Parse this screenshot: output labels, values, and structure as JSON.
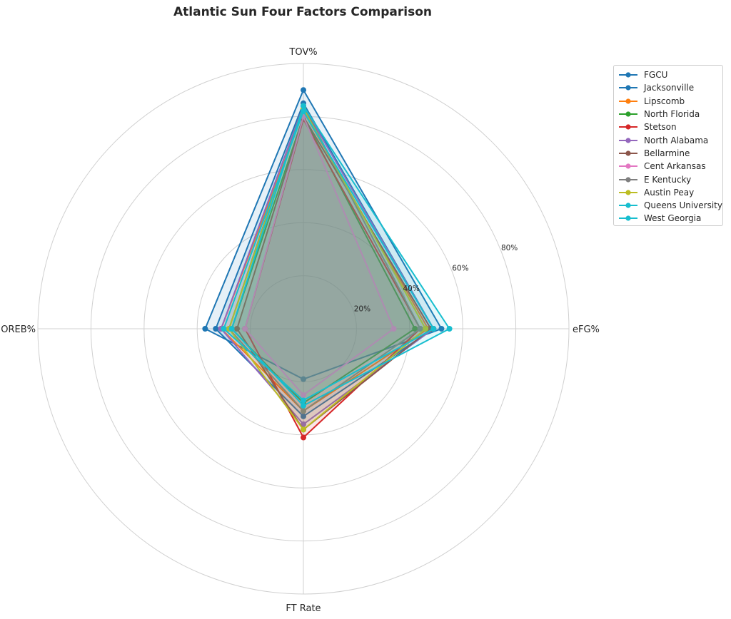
{
  "chart_data": {
    "type": "radar",
    "title": "Atlantic Sun Four Factors Comparison",
    "axes": [
      "eFG%",
      "TOV%",
      "OREB%",
      "FT Rate"
    ],
    "rlim": [
      0,
      100
    ],
    "rticks": [
      20,
      40,
      60,
      80
    ],
    "rtick_labels": [
      "20%",
      "40%",
      "60%",
      "80%"
    ],
    "grid": true,
    "legend": "top-right",
    "series": [
      {
        "name": "FGCU",
        "color": "#1f77b4",
        "values": [
          52,
          90,
          37,
          19
        ]
      },
      {
        "name": "Jacksonville",
        "color": "#1f77b4",
        "values": [
          49,
          85,
          33,
          33
        ]
      },
      {
        "name": "Lipscomb",
        "color": "#ff7f0e",
        "values": [
          47,
          82,
          31,
          31
        ]
      },
      {
        "name": "North Florida",
        "color": "#2ca02c",
        "values": [
          42,
          80,
          27,
          28
        ]
      },
      {
        "name": "Stetson",
        "color": "#d62728",
        "values": [
          44,
          79,
          22,
          41
        ]
      },
      {
        "name": "North Alabama",
        "color": "#9467bd",
        "values": [
          49,
          84,
          31,
          36
        ]
      },
      {
        "name": "Bellarmine",
        "color": "#8c564b",
        "values": [
          48,
          80,
          25,
          38
        ]
      },
      {
        "name": "Cent Arkansas",
        "color": "#e377c2",
        "values": [
          34,
          80,
          22,
          25
        ]
      },
      {
        "name": "E Kentucky",
        "color": "#7f7f7f",
        "values": [
          44,
          84,
          28,
          31
        ]
      },
      {
        "name": "Austin Peay",
        "color": "#bcbd22",
        "values": [
          46,
          83,
          28,
          38
        ]
      },
      {
        "name": "Queens University",
        "color": "#17becf",
        "values": [
          49,
          82,
          30,
          27
        ]
      },
      {
        "name": "West Georgia",
        "color": "#17becf",
        "values": [
          55,
          84,
          27,
          29
        ]
      }
    ]
  }
}
